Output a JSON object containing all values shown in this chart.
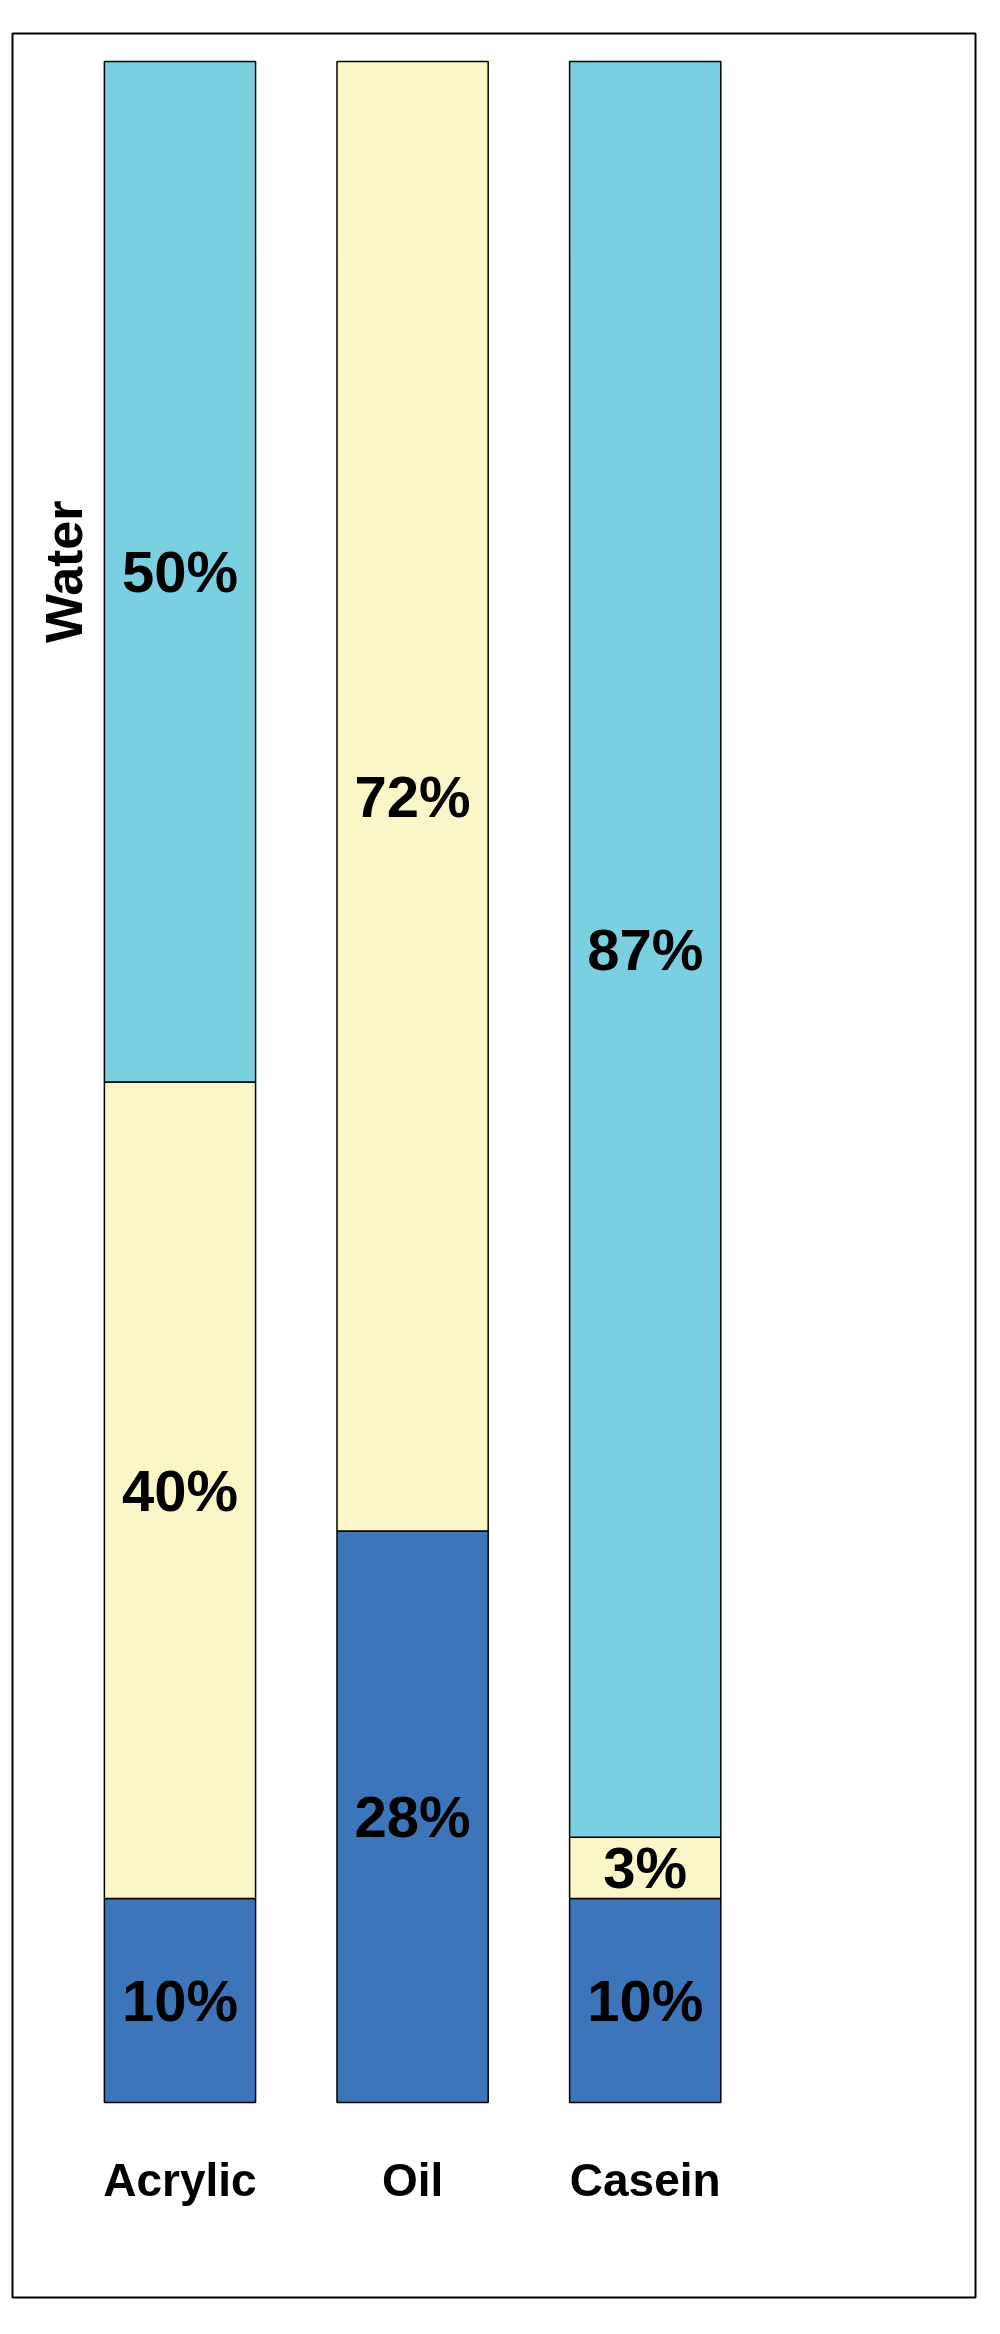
{
  "chart_data": {
    "type": "bar",
    "stacked": true,
    "categories": [
      "Acrylic",
      "Oil",
      "Casein"
    ],
    "series": [
      {
        "color": "#3d75bb",
        "values": [
          10,
          28,
          10
        ],
        "value_labels": [
          "10%",
          "28%",
          "10%"
        ]
      },
      {
        "color": "#fbf6c8",
        "values": [
          40,
          72,
          3
        ],
        "value_labels": [
          "40%",
          "72%",
          "3%"
        ]
      },
      {
        "name": "Water",
        "color": "#7acfe0",
        "values": [
          50,
          null,
          87
        ],
        "value_labels": [
          "50%",
          null,
          "87%"
        ]
      }
    ]
  }
}
